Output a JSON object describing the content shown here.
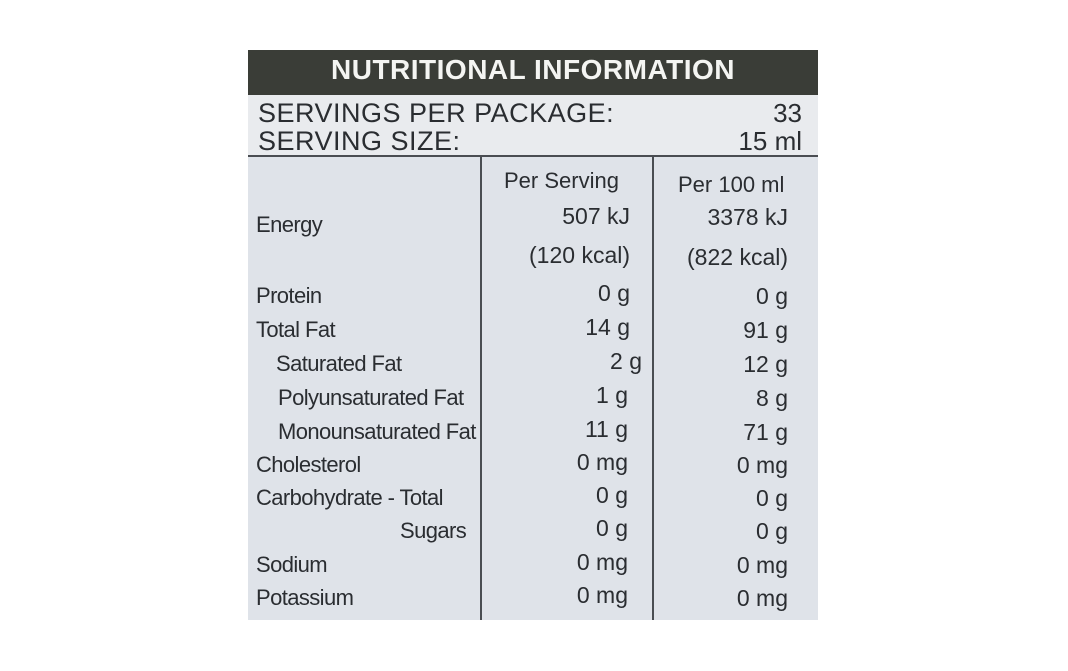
{
  "title": "NUTRITIONAL INFORMATION",
  "servings": {
    "per_package_label": "SERVINGS PER PACKAGE:",
    "per_package_value": "33",
    "size_label": "SERVING SIZE:",
    "size_value": "15 ml"
  },
  "columns": {
    "per_serving": "Per Serving",
    "per_100": "Per 100 ml"
  },
  "energy": {
    "name": "Energy",
    "kj_serving": "507 kJ",
    "kj_100": "3378 kJ",
    "kcal_serving": "(120 kcal)",
    "kcal_100": "(822 kcal)"
  },
  "rows": [
    {
      "name": "Protein",
      "serving": "0 g",
      "per100": "0 g"
    },
    {
      "name": "Total Fat",
      "serving": "14 g",
      "per100": "91 g"
    },
    {
      "name": "Saturated Fat",
      "serving": "2 g",
      "per100": "12 g"
    },
    {
      "name": "Polyunsaturated Fat",
      "serving": "1 g",
      "per100": "8 g"
    },
    {
      "name": "Monounsaturated Fat",
      "serving": "11 g",
      "per100": "71 g"
    },
    {
      "name": "Cholesterol",
      "serving": "0 mg",
      "per100": "0 mg"
    },
    {
      "name": "Carbohydrate - Total",
      "serving": "0 g",
      "per100": "0 g"
    },
    {
      "name": "Sugars",
      "serving": "0 g",
      "per100": "0 g"
    },
    {
      "name": "Sodium",
      "serving": "0 mg",
      "per100": "0 mg"
    },
    {
      "name": "Potassium",
      "serving": "0 mg",
      "per100": "0 mg"
    }
  ]
}
